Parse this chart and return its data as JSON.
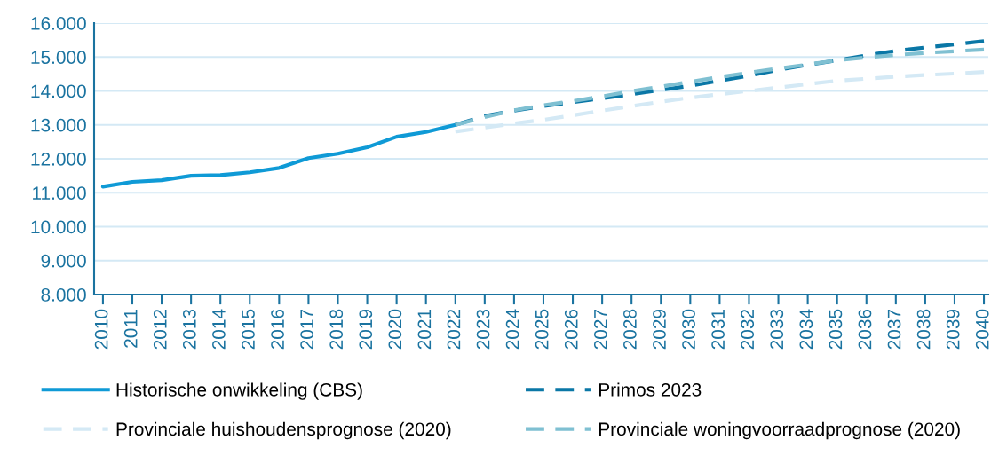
{
  "chart_data": {
    "type": "line",
    "categories": [
      "2010",
      "2011",
      "2012",
      "2013",
      "2014",
      "2015",
      "2016",
      "2017",
      "2018",
      "2019",
      "2020",
      "2021",
      "2022",
      "2023",
      "2024",
      "2025",
      "2026",
      "2027",
      "2028",
      "2029",
      "2030",
      "2031",
      "2032",
      "2033",
      "2034",
      "2035",
      "2036",
      "2037",
      "2038",
      "2039",
      "2040"
    ],
    "series": [
      {
        "name": "Historische onwikkeling (CBS)",
        "color": "#0f9ad6",
        "line_style": "solid",
        "values": [
          11180,
          11320,
          11370,
          11500,
          11520,
          11600,
          11730,
          12020,
          12150,
          12340,
          12650,
          12790,
          13000,
          null,
          null,
          null,
          null,
          null,
          null,
          null,
          null,
          null,
          null,
          null,
          null,
          null,
          null,
          null,
          null,
          null,
          null
        ]
      },
      {
        "name": "Primos 2023",
        "color": "#0a77a6",
        "line_style": "dashed",
        "values": [
          null,
          null,
          null,
          null,
          null,
          null,
          null,
          null,
          null,
          null,
          null,
          null,
          13000,
          13260,
          13420,
          13550,
          13670,
          13780,
          13900,
          14030,
          14150,
          14300,
          14450,
          14620,
          14770,
          14900,
          15050,
          15180,
          15280,
          15370,
          15470
        ]
      },
      {
        "name": "Provinciale huishoudensprognose (2020)",
        "color": "#d4e9f5",
        "line_style": "dashed",
        "values": [
          null,
          null,
          null,
          null,
          null,
          null,
          null,
          null,
          null,
          null,
          null,
          null,
          12800,
          12920,
          13040,
          13150,
          13280,
          13420,
          13550,
          13680,
          13800,
          13900,
          14000,
          14100,
          14200,
          14300,
          14360,
          14420,
          14470,
          14510,
          14560
        ]
      },
      {
        "name": "Provinciale woningvoorraadprognose (2020)",
        "color": "#7fc0d2",
        "line_style": "dashed",
        "values": [
          null,
          null,
          null,
          null,
          null,
          null,
          null,
          null,
          null,
          null,
          null,
          null,
          13000,
          13230,
          13430,
          13580,
          13700,
          13840,
          13990,
          14130,
          14270,
          14410,
          14540,
          14660,
          14780,
          14900,
          14990,
          15060,
          15120,
          15170,
          15220
        ]
      }
    ],
    "ylim": [
      8000,
      16000
    ],
    "yticks": [
      {
        "value": 8000,
        "label": "8.000"
      },
      {
        "value": 9000,
        "label": "9.000"
      },
      {
        "value": 10000,
        "label": "10.000"
      },
      {
        "value": 11000,
        "label": "11.000"
      },
      {
        "value": 12000,
        "label": "12.000"
      },
      {
        "value": 13000,
        "label": "13.000"
      },
      {
        "value": 14000,
        "label": "14.000"
      },
      {
        "value": 15000,
        "label": "15.000"
      },
      {
        "value": 16000,
        "label": "16.000"
      }
    ],
    "grid": "y",
    "legend": "bottom",
    "marker": "none"
  }
}
